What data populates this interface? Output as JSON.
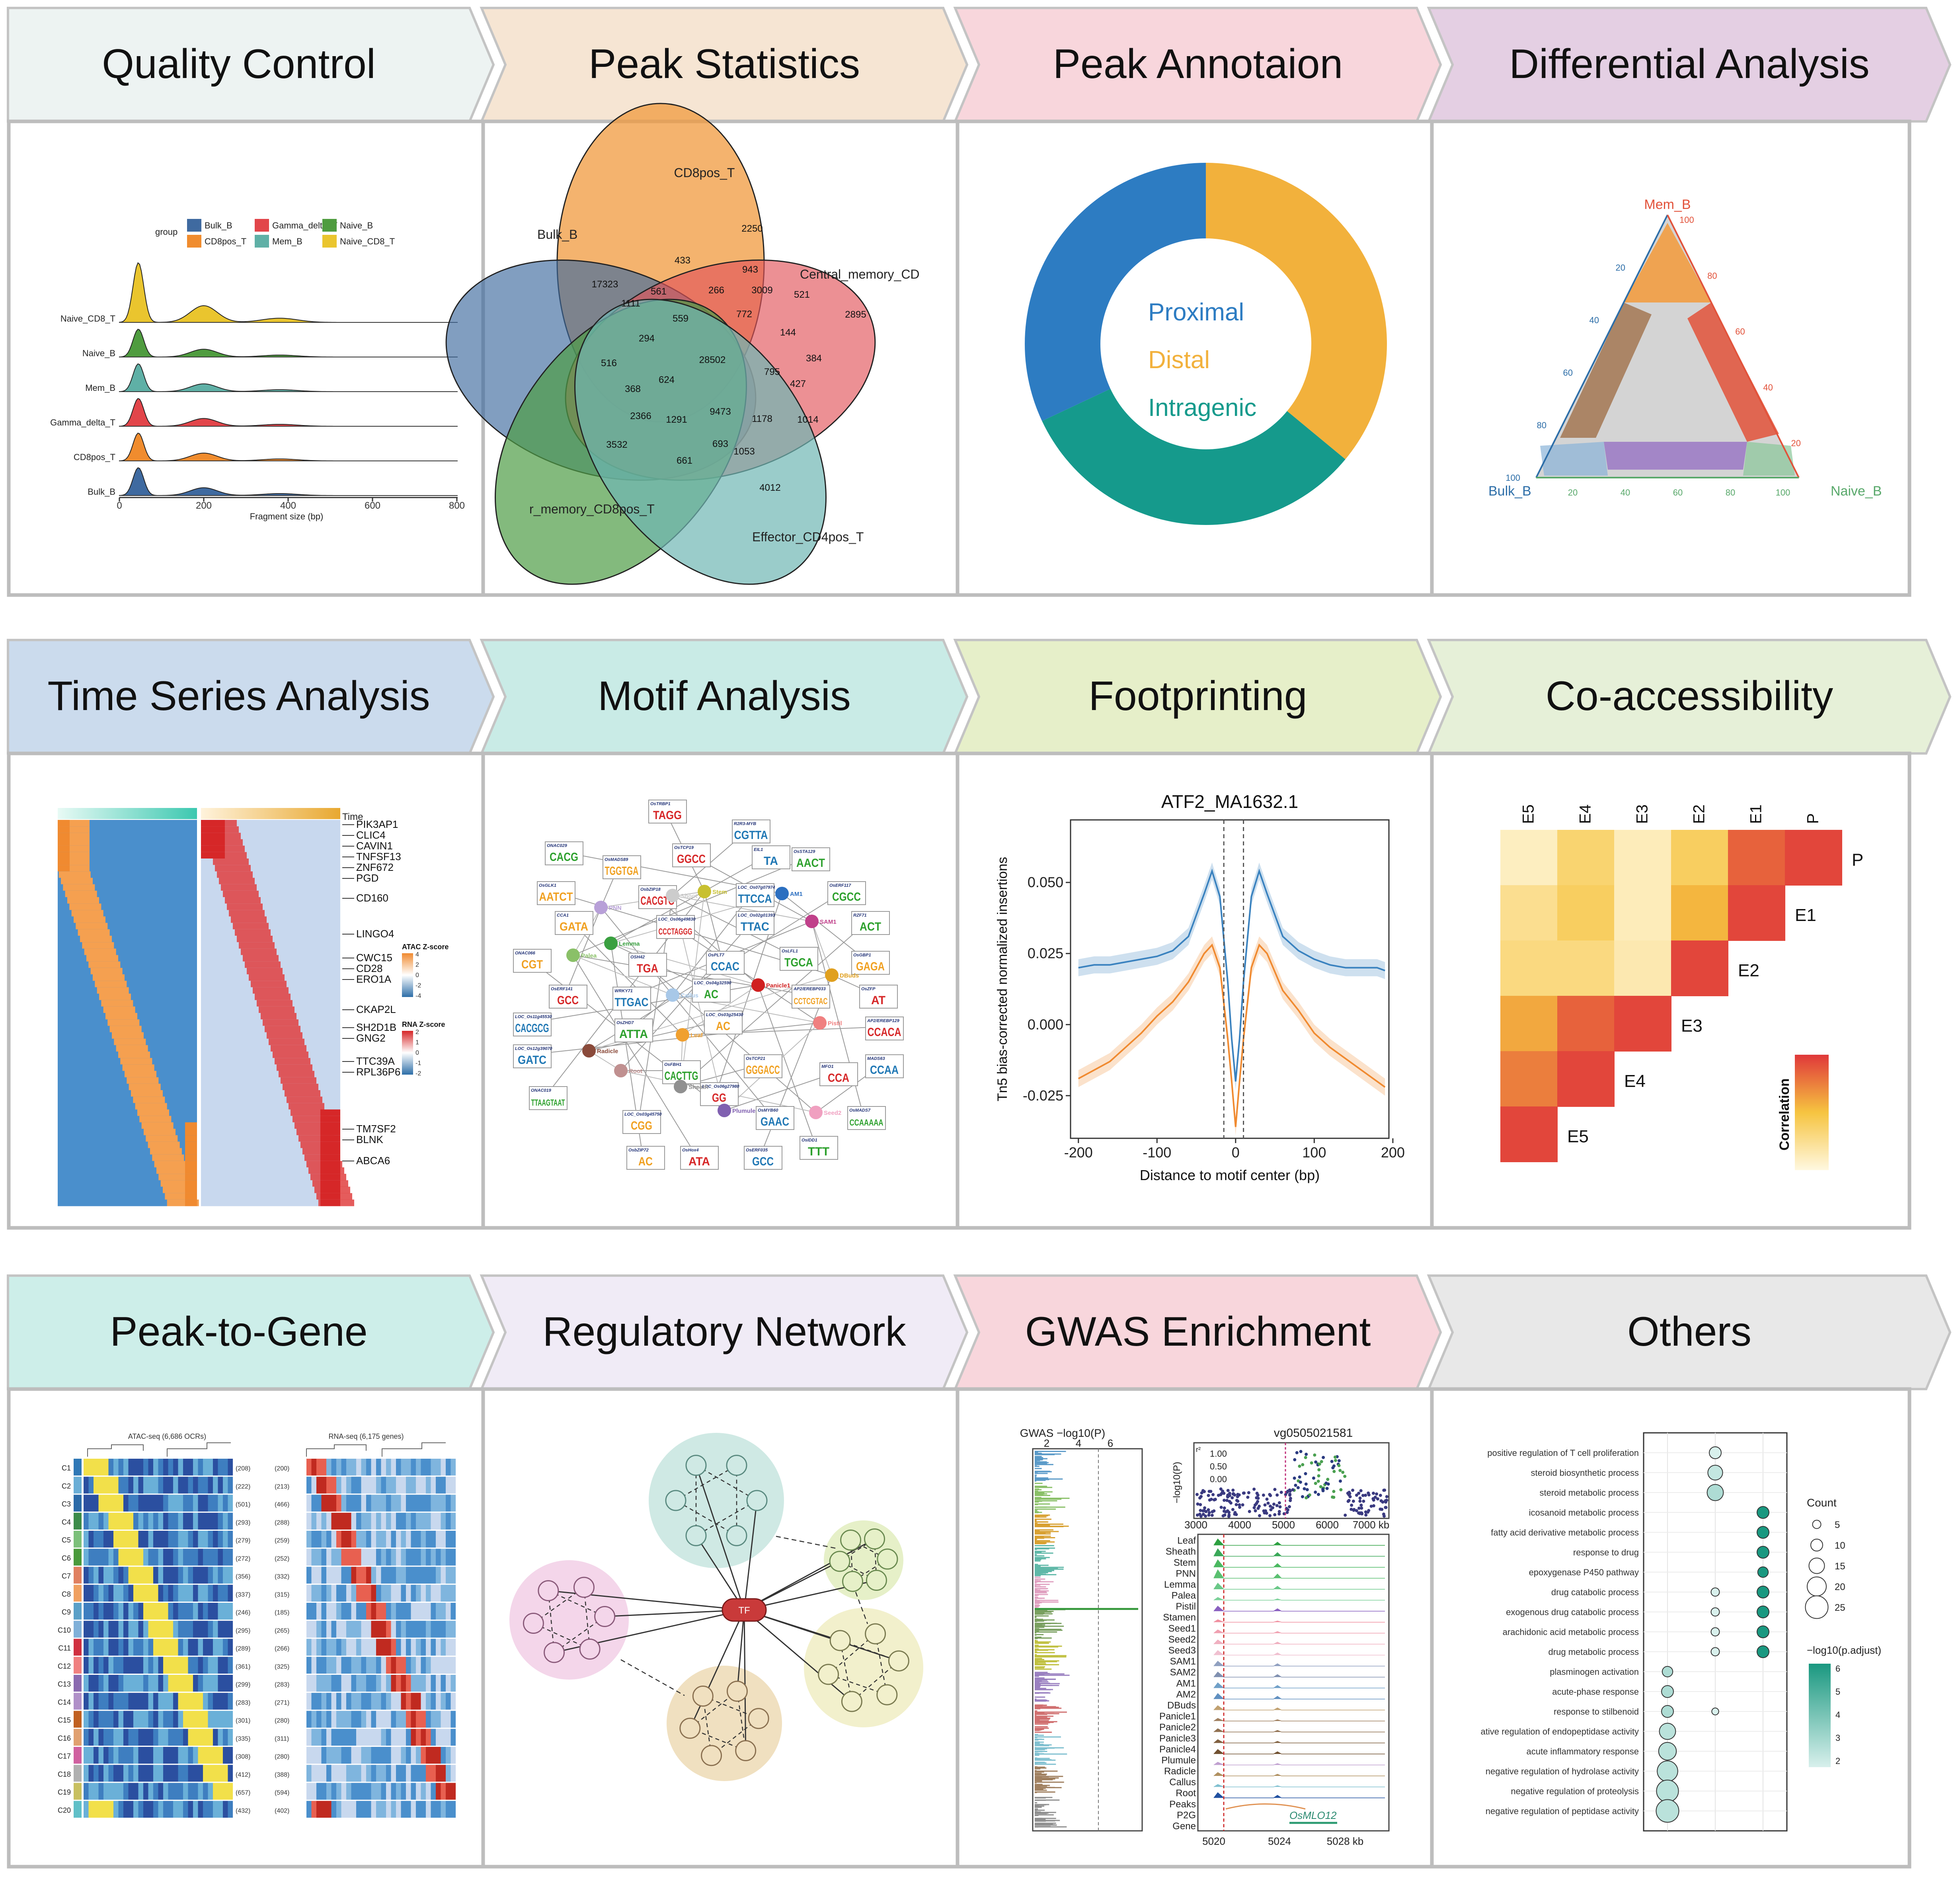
{
  "colors": {
    "frame": "#bbbbbb",
    "quality_control": "#edf3f2",
    "peak_statistics": "#f6e5d3",
    "peak_annotation": "#f8d6dc",
    "differential_analysis": "#e4cfe3",
    "time_series": "#cbdbed",
    "motif_analysis": "#c9ebe6",
    "footprinting": "#e6efc9",
    "co_accessibility": "#e6f0d8",
    "peak_to_gene": "#cdeee9",
    "regulatory_network": "#f0ebf6",
    "gwas_enrichment": "#f8d6dc",
    "others": "#e8e8e8"
  },
  "rows": [
    {
      "panels": [
        {
          "title": "Quality Control",
          "color_key": "quality_control"
        },
        {
          "title": "Peak Statistics",
          "color_key": "peak_statistics"
        },
        {
          "title": "Peak Annotaion",
          "color_key": "peak_annotation"
        },
        {
          "title": "Differential Analysis",
          "color_key": "differential_analysis"
        }
      ]
    },
    {
      "panels": [
        {
          "title": "Time Series Analysis",
          "color_key": "time_series"
        },
        {
          "title": "Motif Analysis",
          "color_key": "motif_analysis"
        },
        {
          "title": "Footprinting",
          "color_key": "footprinting"
        },
        {
          "title": "Co-accessibility",
          "color_key": "co_accessibility"
        }
      ]
    },
    {
      "panels": [
        {
          "title": "Peak-to-Gene",
          "color_key": "peak_to_gene"
        },
        {
          "title": "Regulatory Network",
          "color_key": "regulatory_network"
        },
        {
          "title": "GWAS Enrichment",
          "color_key": "gwas_enrichment"
        },
        {
          "title": "Others",
          "color_key": "others"
        }
      ]
    }
  ],
  "quality_control": {
    "legend_title": "group",
    "legend": [
      {
        "label": "Bulk_B",
        "color": "#3f6aa0"
      },
      {
        "label": "CD8pos_T",
        "color": "#f08c2e"
      },
      {
        "label": "Gamma_delta_T",
        "color": "#e2454a"
      },
      {
        "label": "Mem_B",
        "color": "#5fb0a6"
      },
      {
        "label": "Naive_B",
        "color": "#4f9c3f"
      },
      {
        "label": "Naive_CD8_T",
        "color": "#eac52e"
      }
    ],
    "rows": [
      "Naive_CD8_T",
      "Naive_B",
      "Mem_B",
      "Gamma_delta_T",
      "CD8pos_T",
      "Bulk_B"
    ],
    "x_ticks": [
      "0",
      "200",
      "400",
      "600",
      "800"
    ],
    "x_label": "Fragment size (bp)"
  },
  "peak_statistics": {
    "sets": [
      {
        "label": "CD8pos_T",
        "color": "#f09a3e"
      },
      {
        "label": "Bulk_B",
        "color": "#3d6a9e"
      },
      {
        "label": "Central_memory_CD",
        "color": "#e2555a"
      },
      {
        "label": "r_memory_CD8pos_T",
        "color": "#4f9c46"
      },
      {
        "label": "Effector_CD4pos_T",
        "color": "#6fb7b4"
      }
    ],
    "counts": [
      "2250",
      "17323",
      "2895",
      "3532",
      "4012",
      "433",
      "943",
      "3009",
      "521",
      "561",
      "266",
      "1111",
      "559",
      "772",
      "144",
      "294",
      "28502",
      "384",
      "516",
      "624",
      "795",
      "427",
      "368",
      "2366",
      "1291",
      "9473",
      "1178",
      "1014",
      "693",
      "1053",
      "661"
    ]
  },
  "peak_annotation": {
    "segments": [
      {
        "label": "Proximal",
        "value": 0.32,
        "color": "#2d7cc2"
      },
      {
        "label": "Distal",
        "value": 0.36,
        "color": "#f2b13c"
      },
      {
        "label": "Intragenic",
        "value": 0.32,
        "color": "#159a8c"
      }
    ]
  },
  "differential_analysis": {
    "vertices": [
      "Mem_B",
      "Bulk_B",
      "Naive_B"
    ],
    "right_ticks": [
      "100",
      "80",
      "60",
      "40",
      "20"
    ],
    "left_ticks": [
      "20",
      "40",
      "60",
      "80",
      "100"
    ],
    "bottom_ticks": [
      "20",
      "40",
      "60",
      "80",
      "100"
    ],
    "colors": {
      "mem": "#e2523a",
      "bulk": "#2d6ea8",
      "naive": "#58a86a",
      "top": "#f39a3a",
      "left": "#a0704a",
      "bottom": "#9a78c4",
      "center": "#cccccc"
    }
  },
  "time_series": {
    "time_label": "Time",
    "genes": [
      "PIK3AP1",
      "CLIC4",
      "CAVIN1",
      "TNFSF13",
      "ZNF672",
      "PGD",
      "CD160",
      "LINGO4",
      "CWC15",
      "CD28",
      "ERO1A",
      "CKAP2L",
      "SH2D1B",
      "GNG2",
      "TTC39A",
      "RPL36P6",
      "TM7SF2",
      "BLNK",
      "ABCA6"
    ],
    "atac_legend": {
      "title": "ATAC Z-score",
      "ticks": [
        "4",
        "2",
        "0",
        "-2",
        "-4"
      ]
    },
    "rna_legend": {
      "title": "RNA Z-score",
      "ticks": [
        "2",
        "1",
        "0",
        "-1",
        "-2"
      ]
    }
  },
  "motif_analysis": {
    "motifs": [
      {
        "name": "OsTRBP1",
        "seq": "TAGG"
      },
      {
        "name": "R2R3-MYB",
        "seq": "CGTTA"
      },
      {
        "name": "ONAC029",
        "seq": "CACG"
      },
      {
        "name": "OsMADS89",
        "seq": "TGGTGA"
      },
      {
        "name": "OsTCP19",
        "seq": "GGCC"
      },
      {
        "name": "EIL1",
        "seq": "TA"
      },
      {
        "name": "OsSTA129",
        "seq": "AACT"
      },
      {
        "name": "OsGLK1",
        "seq": "AATCT"
      },
      {
        "name": "OsbZIP18",
        "seq": "CACGTG"
      },
      {
        "name": "LOC_Os07g07974",
        "seq": "TTCCA"
      },
      {
        "name": "OsERF117",
        "seq": "CGCC"
      },
      {
        "name": "CCA1",
        "seq": "GATA"
      },
      {
        "name": "LOC_Os06g49830",
        "seq": "CCCTAGGG"
      },
      {
        "name": "LOC_Os02g01393",
        "seq": "TTAC"
      },
      {
        "name": "RZF71",
        "seq": "ACT"
      },
      {
        "name": "ONAC066",
        "seq": "CGT"
      },
      {
        "name": "OSH42",
        "seq": "TGA"
      },
      {
        "name": "OsPLT7",
        "seq": "CCAC"
      },
      {
        "name": "OsLFL1",
        "seq": "TGCA"
      },
      {
        "name": "OsGBP1",
        "seq": "GAGA"
      },
      {
        "name": "OsERF141",
        "seq": "GCC"
      },
      {
        "name": "WRKY71",
        "seq": "TTGAC"
      },
      {
        "name": "LOC_Os04g32590",
        "seq": "AC"
      },
      {
        "name": "AP2/EREBP033",
        "seq": "CCTCGTAC"
      },
      {
        "name": "OsZFP",
        "seq": "AT"
      },
      {
        "name": "LOC_Os11g45530",
        "seq": "CACGCG"
      },
      {
        "name": "OsZHD7",
        "seq": "ATTA"
      },
      {
        "name": "LOC_Os03g25430",
        "seq": "AC"
      },
      {
        "name": "AP2/EREBP129",
        "seq": "CCACA"
      },
      {
        "name": "LOC_Os12g39070",
        "seq": "GATC"
      },
      {
        "name": "OsFBH1",
        "seq": "CACTTG"
      },
      {
        "name": "OsTCP21",
        "seq": "GGGACC"
      },
      {
        "name": "MFO1",
        "seq": "CCA"
      },
      {
        "name": "MADS63",
        "seq": "CCAA"
      },
      {
        "name": "ONAC019",
        "seq": "TTAAGTAAT"
      },
      {
        "name": "LOC_Os03g45750",
        "seq": "CGG"
      },
      {
        "name": "LOC_Os06g27980",
        "seq": "GG"
      },
      {
        "name": "OsMYB60",
        "seq": "GAAC"
      },
      {
        "name": "OsMADS7",
        "seq": "CCAAAAA"
      },
      {
        "name": "OsbZIP72",
        "seq": "AC"
      },
      {
        "name": "OsHox4",
        "seq": "ATA"
      },
      {
        "name": "OsERF035",
        "seq": "GCC"
      },
      {
        "name": "OsIDD1",
        "seq": "TTT"
      }
    ],
    "tissues": [
      {
        "label": "Stem",
        "color": "#c8c030"
      },
      {
        "label": "Shoot",
        "color": "#cccccc"
      },
      {
        "label": "AM1",
        "color": "#2c6fc0"
      },
      {
        "label": "PNN",
        "color": "#b8a0d8"
      },
      {
        "label": "SAM1",
        "color": "#c0408a"
      },
      {
        "label": "Lemma",
        "color": "#3aa040"
      },
      {
        "label": "Palea",
        "color": "#8ac068"
      },
      {
        "label": "DBuds",
        "color": "#e0a020"
      },
      {
        "label": "Panicle1",
        "color": "#d02020"
      },
      {
        "label": "Callus",
        "color": "#a8c8e8"
      },
      {
        "label": "Radicle",
        "color": "#8a4a3a"
      },
      {
        "label": "Leaf",
        "color": "#f0a030"
      },
      {
        "label": "Pistil",
        "color": "#f08080"
      },
      {
        "label": "Root",
        "color": "#c09090"
      },
      {
        "label": "Sheath",
        "color": "#909090"
      },
      {
        "label": "Plumule",
        "color": "#8060b0"
      },
      {
        "label": "Seed2",
        "color": "#f0a0c0"
      }
    ]
  },
  "footprinting": {
    "chart_data": {
      "type": "line",
      "title": "ATF2_MA1632.1",
      "xlabel": "Distance to motif center (bp)",
      "ylabel": "Tn5 bias-corrected normalized insertions",
      "xlim": [
        -210,
        195
      ],
      "ylim": [
        -0.04,
        0.072
      ],
      "x_ticks": [
        "-200",
        "-100",
        "0",
        "100",
        "200"
      ],
      "y_ticks": [
        "0.050",
        "0.025",
        "0.000",
        "-0.025"
      ],
      "x": [
        -200,
        -180,
        -160,
        -140,
        -120,
        -100,
        -80,
        -60,
        -40,
        -30,
        -20,
        -10,
        -5,
        0,
        5,
        10,
        20,
        30,
        40,
        60,
        80,
        100,
        120,
        140,
        160,
        180,
        190
      ],
      "series": [
        {
          "color": "#3a82bf",
          "values": [
            0.02,
            0.021,
            0.021,
            0.022,
            0.023,
            0.024,
            0.026,
            0.031,
            0.046,
            0.054,
            0.045,
            0.015,
            -0.005,
            -0.02,
            -0.005,
            0.015,
            0.045,
            0.054,
            0.046,
            0.031,
            0.026,
            0.023,
            0.021,
            0.02,
            0.02,
            0.02,
            0.019
          ]
        },
        {
          "color": "#f08a30",
          "values": [
            -0.019,
            -0.016,
            -0.013,
            -0.008,
            -0.003,
            0.003,
            0.008,
            0.015,
            0.025,
            0.028,
            0.02,
            -0.005,
            -0.02,
            -0.036,
            -0.02,
            -0.005,
            0.02,
            0.028,
            0.025,
            0.012,
            0.005,
            -0.003,
            -0.008,
            -0.012,
            -0.016,
            -0.02,
            -0.022
          ]
        }
      ],
      "vlines": [
        -15,
        10
      ]
    }
  },
  "co_accessibility": {
    "columns": [
      "E5",
      "E4",
      "E3",
      "E2",
      "E1",
      "P"
    ],
    "row_labels": [
      "P",
      "E1",
      "E2",
      "E3",
      "E4",
      "E5"
    ],
    "legend_title": "Correlation",
    "matrix": [
      [
        0.1,
        0.35,
        0.12,
        0.4,
        0.85,
        0.95
      ],
      [
        0.25,
        0.4,
        0.12,
        0.55,
        0.95
      ],
      [
        0.3,
        0.3,
        0.15,
        0.95
      ],
      [
        0.6,
        0.85,
        0.95
      ],
      [
        0.75,
        0.95
      ],
      [
        0.95
      ]
    ]
  },
  "peak_to_gene": {
    "atac_title": "ATAC-seq (6,686 OCRs)",
    "rna_title": "RNA-seq (6,175 genes)",
    "clusters": [
      {
        "label": "C1",
        "atac": "(208)",
        "rna": "(200)",
        "color": "#2f78b6"
      },
      {
        "label": "C2",
        "atac": "(222)",
        "rna": "(213)",
        "color": "#6aaed6"
      },
      {
        "label": "C3",
        "atac": "(501)",
        "rna": "(466)",
        "color": "#2b6aa8"
      },
      {
        "label": "C4",
        "atac": "(293)",
        "rna": "(288)",
        "color": "#3c8c4a"
      },
      {
        "label": "C5",
        "atac": "(279)",
        "rna": "(259)",
        "color": "#7cc07a"
      },
      {
        "label": "C6",
        "atac": "(272)",
        "rna": "(252)",
        "color": "#4a9a3c"
      },
      {
        "label": "C7",
        "atac": "(356)",
        "rna": "(332)",
        "color": "#e08060"
      },
      {
        "label": "C8",
        "atac": "(337)",
        "rna": "(315)",
        "color": "#f0a060"
      },
      {
        "label": "C9",
        "atac": "(246)",
        "rna": "(185)",
        "color": "#5aa0c8"
      },
      {
        "label": "C10",
        "atac": "(295)",
        "rna": "(265)",
        "color": "#80b0d8"
      },
      {
        "label": "C11",
        "atac": "(289)",
        "rna": "(266)",
        "color": "#d03040"
      },
      {
        "label": "C12",
        "atac": "(361)",
        "rna": "(325)",
        "color": "#f08080"
      },
      {
        "label": "C13",
        "atac": "(299)",
        "rna": "(283)",
        "color": "#8a6ab0"
      },
      {
        "label": "C14",
        "atac": "(283)",
        "rna": "(271)",
        "color": "#b090c8"
      },
      {
        "label": "C15",
        "atac": "(301)",
        "rna": "(280)",
        "color": "#c06020"
      },
      {
        "label": "C16",
        "atac": "(335)",
        "rna": "(311)",
        "color": "#e0a070"
      },
      {
        "label": "C17",
        "atac": "(308)",
        "rna": "(280)",
        "color": "#d060a0"
      },
      {
        "label": "C18",
        "atac": "(412)",
        "rna": "(388)",
        "color": "#b0b0b0"
      },
      {
        "label": "C19",
        "atac": "(657)",
        "rna": "(594)",
        "color": "#c8c060"
      },
      {
        "label": "C20",
        "atac": "(432)",
        "rna": "(402)",
        "color": "#60c0c8"
      }
    ]
  },
  "regulatory_network": {
    "tf_label": "TF",
    "modules": [
      {
        "color": "#cfe9e4",
        "stroke": "#5a8a80"
      },
      {
        "color": "#e6f0c8",
        "stroke": "#6a8a50"
      },
      {
        "color": "#f4d6ea",
        "stroke": "#8a5a7a"
      },
      {
        "color": "#f0e0c0",
        "stroke": "#8a7050"
      },
      {
        "color": "#f2f0cc",
        "stroke": "#7a7a50"
      }
    ]
  },
  "gwas_enrichment": {
    "manhattan_title": "GWAS −log10(P)",
    "manhattan_ticks": [
      "2",
      "4",
      "6"
    ],
    "locus_title": "vg0505021581",
    "r2_label": "r²",
    "r2_ticks": [
      "1.00",
      "0.50",
      "0.00"
    ],
    "locus_y_label": "−log10(P)",
    "locus_x_ticks": [
      "3000",
      "4000",
      "5000",
      "6000",
      "7000 kb"
    ],
    "tracks": [
      "Leaf",
      "Sheath",
      "Stem",
      "PNN",
      "Lemma",
      "Palea",
      "Pistil",
      "Stamen",
      "Seed1",
      "Seed2",
      "Seed3",
      "SAM1",
      "SAM2",
      "AM1",
      "AM2",
      "DBuds",
      "Panicle1",
      "Panicle2",
      "Panicle3",
      "Panicle4",
      "Plumule",
      "Radicle",
      "Callus",
      "Root",
      "Peaks",
      "P2G",
      "Gene"
    ],
    "gene_name": "OsMLO12",
    "bottom_ticks": [
      "5020",
      "5024",
      "5028 kb"
    ]
  },
  "others": {
    "terms": [
      "positive regulation of T cell proliferation",
      "steroid biosynthetic process",
      "steroid metabolic process",
      "icosanoid metabolic process",
      "fatty acid derivative metabolic process",
      "response to drug",
      "epoxygenase P450 pathway",
      "drug catabolic process",
      "exogenous drug catabolic process",
      "arachidonic acid metabolic process",
      "drug metabolic process",
      "plasminogen activation",
      "acute-phase response",
      "response to stilbenoid",
      "ative regulation of endopeptidase activity",
      "acute inflammatory response",
      "negative regulation of hydrolase activity",
      "negative regulation of proteolysis",
      "negative regulation of peptidase activity"
    ],
    "dots": [
      {
        "term": 0,
        "col": 1,
        "size": 10,
        "p": 1.5
      },
      {
        "term": 1,
        "col": 1,
        "size": 14,
        "p": 2.0
      },
      {
        "term": 2,
        "col": 1,
        "size": 16,
        "p": 2.5
      },
      {
        "term": 3,
        "col": 2,
        "size": 10,
        "p": 6.0
      },
      {
        "term": 4,
        "col": 2,
        "size": 10,
        "p": 6.0
      },
      {
        "term": 5,
        "col": 2,
        "size": 10,
        "p": 6.0
      },
      {
        "term": 6,
        "col": 2,
        "size": 8,
        "p": 6.0
      },
      {
        "term": 7,
        "col": 1,
        "size": 5,
        "p": 1.5
      },
      {
        "term": 7,
        "col": 2,
        "size": 10,
        "p": 6.0
      },
      {
        "term": 8,
        "col": 1,
        "size": 5,
        "p": 1.5
      },
      {
        "term": 8,
        "col": 2,
        "size": 10,
        "p": 6.0
      },
      {
        "term": 9,
        "col": 1,
        "size": 5,
        "p": 1.5
      },
      {
        "term": 9,
        "col": 2,
        "size": 10,
        "p": 6.0
      },
      {
        "term": 10,
        "col": 1,
        "size": 5,
        "p": 1.5
      },
      {
        "term": 10,
        "col": 2,
        "size": 10,
        "p": 6.0
      },
      {
        "term": 11,
        "col": 0,
        "size": 8,
        "p": 2.5
      },
      {
        "term": 12,
        "col": 0,
        "size": 10,
        "p": 2.5
      },
      {
        "term": 13,
        "col": 0,
        "size": 10,
        "p": 2.5
      },
      {
        "term": 13,
        "col": 1,
        "size": 3,
        "p": 1.5
      },
      {
        "term": 14,
        "col": 0,
        "size": 16,
        "p": 2.2
      },
      {
        "term": 15,
        "col": 0,
        "size": 18,
        "p": 2.2
      },
      {
        "term": 16,
        "col": 0,
        "size": 22,
        "p": 2.2
      },
      {
        "term": 17,
        "col": 0,
        "size": 24,
        "p": 2.2
      },
      {
        "term": 18,
        "col": 0,
        "size": 25,
        "p": 2.2
      }
    ],
    "count_title": "Count",
    "count_ticks": [
      "5",
      "10",
      "15",
      "20",
      "25"
    ],
    "padj_title": "−log10(p.adjust)",
    "padj_ticks": [
      "6",
      "5",
      "4",
      "3",
      "2"
    ]
  }
}
